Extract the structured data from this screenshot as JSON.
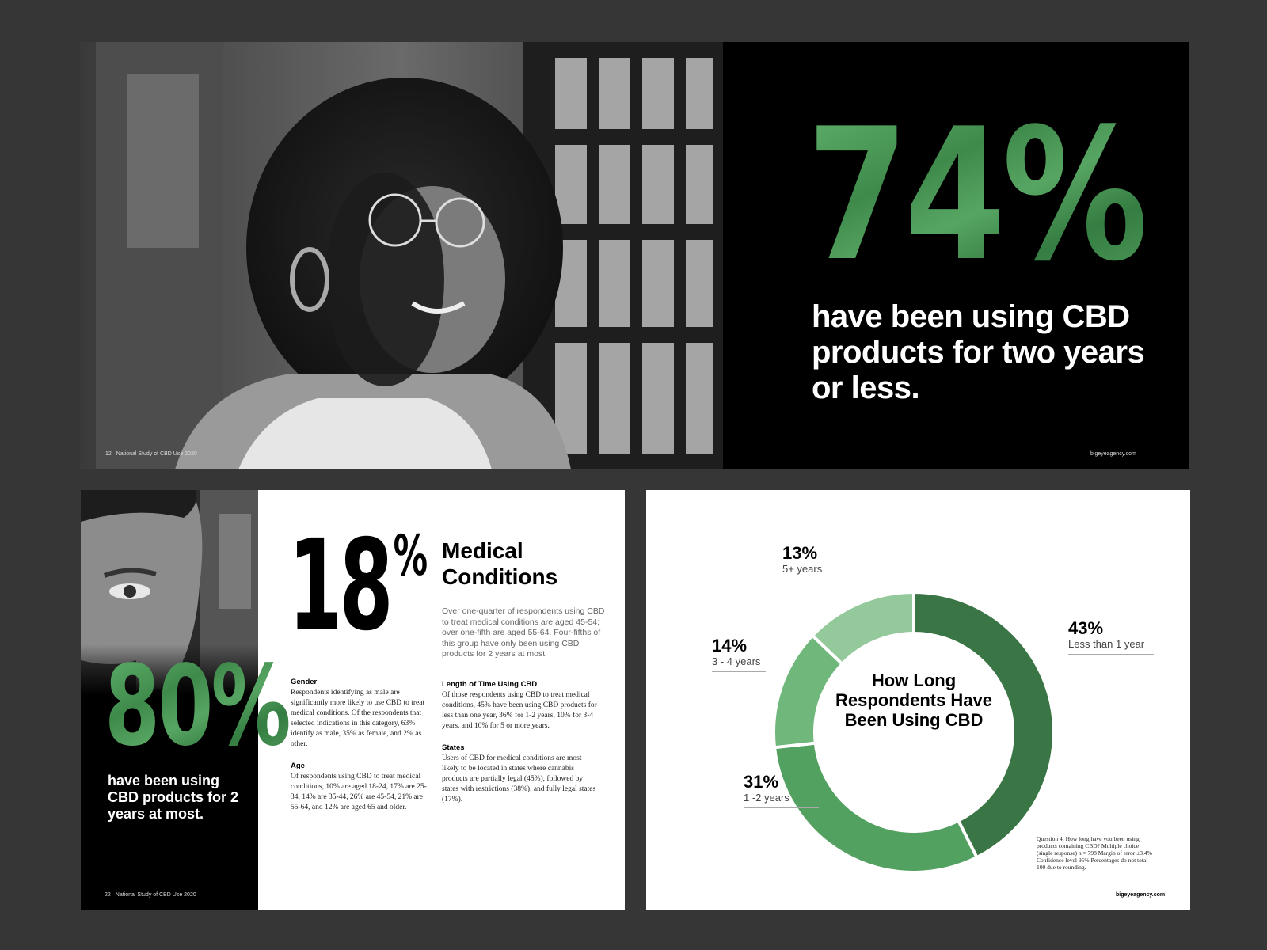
{
  "slide_top": {
    "stat": "74%",
    "caption": "have been using CBD products for two years or less.",
    "footer_page": "12",
    "footer_title": "National Study of CBD Use 2020",
    "footer_site": "bigeyeagency.com"
  },
  "slide_left": {
    "stat": "80%",
    "caption": "have been using CBD products for 2 years at most.",
    "footer_page": "22",
    "footer_title": "National Study of CBD Use 2020",
    "stat_big": "18",
    "stat_big_pct": "%",
    "title": "Medical Conditions",
    "intro": "Over one-quarter of respondents using CBD to treat medical conditions are aged 45-54; over one-fifth are aged 55-64. Four-fifths of this group have only been using CBD products for 2 years at most.",
    "gender_head": "Gender",
    "gender_body": "Respondents identifying as male are significantly more likely to use CBD to treat medical conditions. Of the respondents that selected indications in this category, 63% identify as male, 35% as female, and 2% as other.",
    "age_head": "Age",
    "age_body": "Of respondents using CBD to treat medical conditions, 10% are aged 18-24, 17% are 25-34, 14% are 35-44, 26% are 45-54, 21% are 55-64, and 12% are aged 65 and older.",
    "length_head": "Length of Time Using CBD",
    "length_body": "Of those respondents using CBD to treat medical conditions, 45% have been using CBD products for less than one year, 36% for 1-2 years, 10% for 3-4 years, and 10% for 5 or more years.",
    "states_head": "States",
    "states_body": "Users of CBD for medical conditions are most likely to be located in states where cannabis products are partially legal (45%), followed by states with restrictions (38%), and fully legal states (17%)."
  },
  "slide_right": {
    "note": "Question 4: How long have you been using products containing CBD? Multiple choice (single response) n = 798 Margin of error ±3.4% Confidence level 95% Percentages do not total 100 due to rounding.",
    "footer_site": "bigeyeagency.com"
  },
  "chart_data": {
    "type": "pie",
    "title": "How Long Respondents Have Been Using CBD",
    "categories": [
      "Less than 1 year",
      "1 -2 years",
      "3 - 4 years",
      "5+ years"
    ],
    "values": [
      43,
      31,
      14,
      13
    ],
    "value_labels": [
      "43%",
      "31%",
      "14%",
      "13%"
    ],
    "colors": [
      "#3a7545",
      "#53a161",
      "#6fb77a",
      "#94c99c"
    ],
    "donut": true
  },
  "colors": {
    "background": "#363636",
    "accent_green": "#4f9c5b",
    "dark_slide": "#000000"
  }
}
